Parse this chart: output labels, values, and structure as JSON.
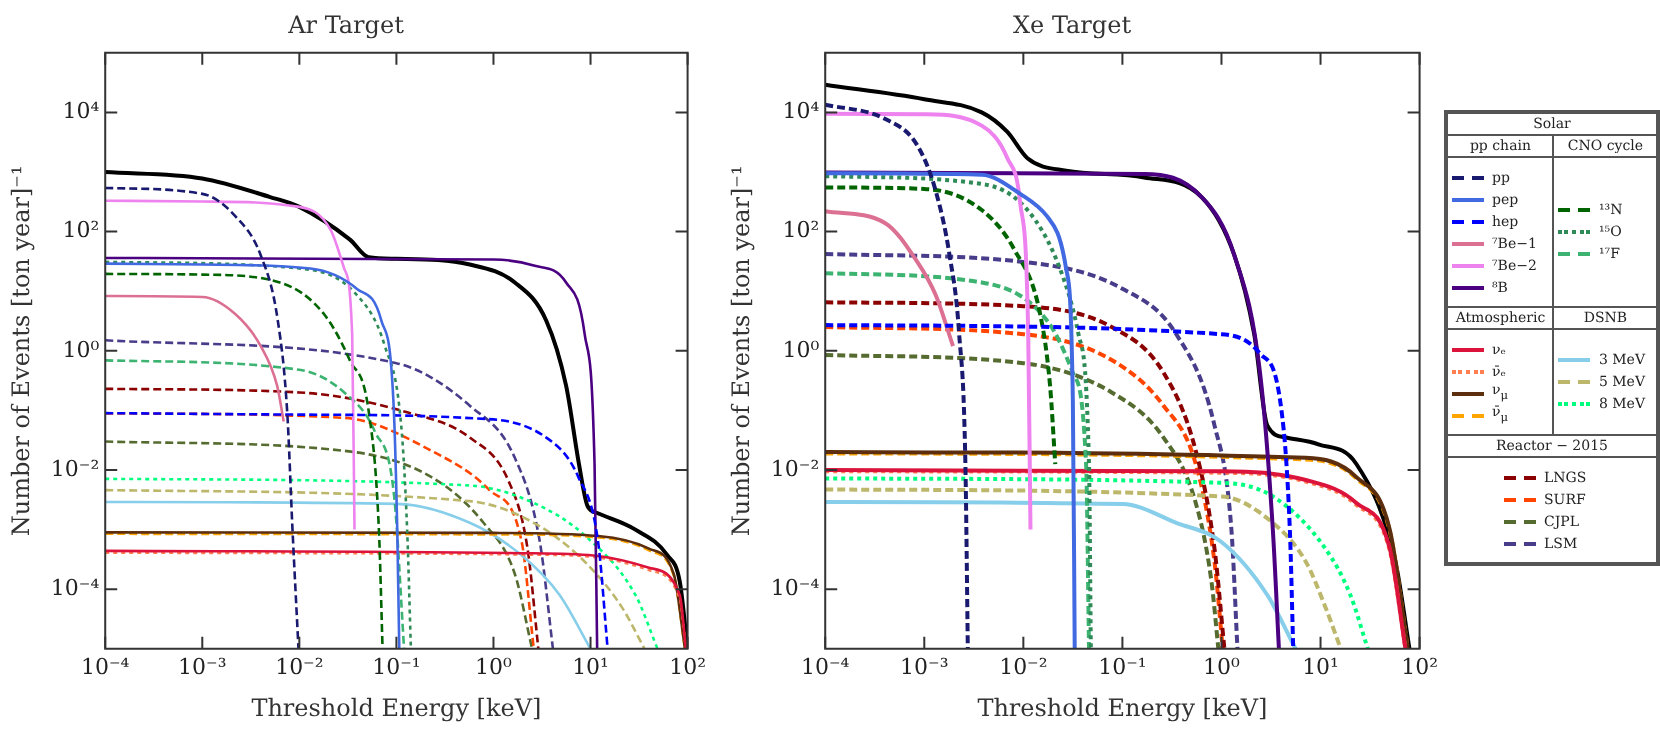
{
  "chart_data": [
    {
      "type": "line",
      "title": "Ar Target",
      "xlabel": "Threshold Energy [keV]",
      "ylabel": "Number of Events [ton year]⁻¹",
      "log": "xy",
      "legend": "right",
      "grid": false,
      "annotations": [
        "Solar",
        "pp chain",
        "CNO cycle",
        "Atmospheric",
        "DSNB",
        "Reactor − 2015"
      ],
      "xlim": [
        0.0001,
        100
      ],
      "ylim": [
        1e-05,
        100000
      ],
      "xticks": [
        {
          "value": 0.0001,
          "label": "10⁻⁴"
        },
        {
          "value": 0.001,
          "label": "10⁻³"
        },
        {
          "value": 0.01,
          "label": "10⁻²"
        },
        {
          "value": 0.1,
          "label": "10⁻¹"
        },
        {
          "value": 1,
          "label": "10⁰"
        },
        {
          "value": 10,
          "label": "10¹"
        },
        {
          "value": 100,
          "label": "10²"
        }
      ],
      "yticks": [
        {
          "value": 0.0001,
          "label": "10⁻⁴"
        },
        {
          "value": 0.01,
          "label": "10⁻²"
        },
        {
          "value": 1,
          "label": "10⁰"
        },
        {
          "value": 100,
          "label": "10²"
        },
        {
          "value": 10000,
          "label": "10⁴"
        }
      ],
      "series": [
        {
          "name": "pp",
          "color": "#191970",
          "line_style": "dashed",
          "x": [
            0.0001,
            0.001,
            0.0022,
            0.004,
            0.006,
            0.0075,
            0.0085,
            0.0098
          ],
          "values": [
            540,
            430,
            180,
            40,
            3.2,
            0.093,
            0.001,
            1e-05
          ]
        },
        {
          "name": "pep",
          "color": "#4169e1",
          "line_style": "solid",
          "x": [
            0.0001,
            0.001,
            0.013,
            0.039,
            0.07,
            0.093,
            0.102,
            0.107
          ],
          "values": [
            29,
            28,
            24,
            11,
            3.2,
            0.15,
            0.001,
            1e-05
          ]
        },
        {
          "name": "hep",
          "color": "#0000ff",
          "line_style": "dashed",
          "x": [
            0.0001,
            0.01,
            0.5,
            3.5,
            7.5,
            12,
            15
          ],
          "values": [
            0.09,
            0.085,
            0.075,
            0.035,
            0.0076,
            0.0006,
            1e-05
          ]
        },
        {
          "name": "⁷Be−1",
          "color": "#db7093",
          "line_style": "solid",
          "x": [
            0.0001,
            0.001,
            0.0022,
            0.004,
            0.0059,
            0.0069
          ],
          "values": [
            8.3,
            8,
            4.1,
            1.2,
            0.26,
            0.065
          ]
        },
        {
          "name": "⁷Be−2",
          "color": "#ee82ee",
          "line_style": "solid",
          "x": [
            0.0001,
            0.001,
            0.01,
            0.021,
            0.029,
            0.035,
            0.037
          ],
          "values": [
            330,
            320,
            260,
            107,
            24,
            1.9,
            0.001
          ]
        },
        {
          "name": "⁸B",
          "color": "#4b0082",
          "line_style": "solid",
          "x": [
            0.0001,
            1,
            2.6,
            5.6,
            8.7,
            11,
            11.7
          ],
          "values": [
            36,
            34,
            27,
            14,
            1.9,
            0.0126,
            1e-05
          ]
        },
        {
          "name": "¹³N",
          "color": "#006400",
          "line_style": "dashed",
          "x": [
            0.0001,
            0.001,
            0.0063,
            0.018,
            0.033,
            0.052,
            0.066,
            0.072
          ],
          "values": [
            19.5,
            19,
            14,
            4.1,
            0.7,
            0.093,
            0.001,
            1e-05
          ]
        },
        {
          "name": "¹⁵O",
          "color": "#2e8b57",
          "line_style": "dotted",
          "x": [
            0.0001,
            0.01,
            0.039,
            0.076,
            0.112,
            0.129,
            0.141
          ],
          "values": [
            31,
            24,
            8.7,
            1.2,
            0.056,
            0.001,
            1e-05
          ]
        },
        {
          "name": "¹⁷F",
          "color": "#3cb371",
          "line_style": "dashed",
          "x": [
            0.0001,
            0.01,
            0.029,
            0.06,
            0.095,
            0.12
          ],
          "values": [
            0.69,
            0.48,
            0.2,
            0.044,
            0.0035,
            1e-05
          ]
        },
        {
          "name": "νₑ",
          "color": "#dc143c",
          "line_style": "solid",
          "x": [
            0.0001,
            2.6,
            12,
            40,
            83,
            96
          ],
          "values": [
            0.00044,
            0.0004,
            0.00036,
            0.00023,
            8e-05,
            1e-05
          ]
        },
        {
          "name": "ν̄ₑ",
          "color": "#ff7f50",
          "line_style": "dotted",
          "x": [
            0.0001,
            2.6,
            12,
            40,
            83,
            96
          ],
          "values": [
            0.00041,
            0.00038,
            0.00034,
            0.00021,
            7e-05,
            1e-05
          ]
        },
        {
          "name": "ν$_{μ}$",
          "color": "#5c2e0e",
          "line_style": "solid",
          "x": [
            0.0001,
            1,
            12,
            40,
            72,
            94
          ],
          "values": [
            0.0009,
            0.00088,
            0.00078,
            0.00048,
            0.00018,
            1e-05
          ]
        },
        {
          "name": "ν̄$_{μ}$",
          "color": "#ffa500",
          "line_style": "dashed",
          "x": [
            0.0001,
            1,
            12,
            40,
            72,
            94
          ],
          "values": [
            0.00085,
            0.00083,
            0.00074,
            0.00045,
            0.00017,
            1e-05
          ]
        },
        {
          "name": "3 MeV",
          "color": "#87ceeb",
          "line_style": "solid",
          "x": [
            0.0001,
            0.1,
            0.57,
            1.95,
            4.8,
            10
          ],
          "values": [
            0.0029,
            0.0027,
            0.0013,
            0.00037,
            8e-05,
            1e-05
          ]
        },
        {
          "name": "5 MeV",
          "color": "#bdb76b",
          "line_style": "dashed",
          "x": [
            0.0001,
            0.57,
            2.6,
            8.7,
            21,
            36
          ],
          "values": [
            0.0046,
            0.003,
            0.0013,
            0.00029,
            5e-05,
            1e-05
          ]
        },
        {
          "name": "8 MeV",
          "color": "#00ff7f",
          "line_style": "dotted",
          "x": [
            0.0001,
            0.57,
            2.6,
            8.7,
            29,
            49
          ],
          "values": [
            0.0071,
            0.0055,
            0.0028,
            0.0008,
            8e-05,
            1e-05
          ]
        },
        {
          "name": "LNGS",
          "color": "#8b0000",
          "line_style": "dashed",
          "x": [
            0.0001,
            0.01,
            0.129,
            0.57,
            1.45,
            2.24,
            2.9
          ],
          "values": [
            0.23,
            0.2,
            0.093,
            0.035,
            0.0062,
            0.00049,
            1e-05
          ]
        },
        {
          "name": "SURF",
          "color": "#ff4500",
          "line_style": "dashed",
          "x": [
            0.0001,
            0.029,
            0.23,
            0.91,
            1.95,
            2.6
          ],
          "values": [
            0.089,
            0.075,
            0.021,
            0.0046,
            0.00063,
            1e-05
          ]
        },
        {
          "name": "CJPL",
          "color": "#556b2f",
          "line_style": "dashed",
          "x": [
            0.0001,
            0.029,
            0.23,
            0.79,
            1.66,
            2.5
          ],
          "values": [
            0.03,
            0.021,
            0.0076,
            0.0013,
            0.00018,
            1e-05
          ]
        },
        {
          "name": "LSM",
          "color": "#483d8b",
          "line_style": "dashed",
          "x": [
            0.0001,
            0.1,
            0.57,
            1.66,
            3,
            4.1
          ],
          "values": [
            1.5,
            0.62,
            0.12,
            0.016,
            0.00063,
            1e-05
          ]
        },
        {
          "color": "#000000",
          "line_style": "solid",
          "x": [
            0.0001,
            0.001,
            0.005,
            0.01,
            0.033,
            0.052,
            0.1,
            0.57,
            1.66,
            3.5,
            5.6,
            7.6,
            9.3,
            11.7,
            29,
            62,
            83,
            100
          ],
          "values": [
            1000,
            780,
            380,
            260,
            74,
            37,
            35,
            28,
            14,
            3.2,
            0.26,
            0.0126,
            0.0025,
            0.0019,
            0.001,
            0.00037,
            0.000135,
            1e-05
          ]
        }
      ]
    },
    {
      "type": "line",
      "title": "Xe Target",
      "xlabel": "Threshold Energy [keV]",
      "ylabel": "Number of Events [ton year]⁻¹",
      "log": "xy",
      "grid": false,
      "xlim": [
        0.0001,
        100
      ],
      "ylim": [
        1e-05,
        100000
      ],
      "xticks": [
        {
          "value": 0.0001,
          "label": "10⁻⁴"
        },
        {
          "value": 0.001,
          "label": "10⁻³"
        },
        {
          "value": 0.01,
          "label": "10⁻²"
        },
        {
          "value": 0.1,
          "label": "10⁻¹"
        },
        {
          "value": 1,
          "label": "10⁰"
        },
        {
          "value": 10,
          "label": "10¹"
        },
        {
          "value": 100,
          "label": "10²"
        }
      ],
      "yticks": [
        {
          "value": 0.0001,
          "label": "10⁻⁴"
        },
        {
          "value": 0.01,
          "label": "10⁻²"
        },
        {
          "value": 1,
          "label": "10⁰"
        },
        {
          "value": 100,
          "label": "10²"
        },
        {
          "value": 10000,
          "label": "10⁴"
        }
      ],
      "series": [
        {
          "color": "#191970",
          "line_style": "dashed",
          "x": [
            0.0001,
            0.0004,
            0.00085,
            0.0013,
            0.0018,
            0.00225,
            0.0026,
            0.00275
          ],
          "values": [
            13500,
            7800,
            2800,
            490,
            40,
            1.9,
            0.0126,
            1e-05
          ]
        },
        {
          "color": "#4169e1",
          "line_style": "solid",
          "x": [
            0.0001,
            0.0038,
            0.0093,
            0.0174,
            0.027,
            0.0316,
            0.033
          ],
          "values": [
            950,
            900,
            430,
            180,
            24,
            0.15,
            1e-05
          ]
        },
        {
          "color": "#0000ff",
          "line_style": "dashed",
          "x": [
            0.0001,
            1,
            2.45,
            3.9,
            4.9,
            5.3
          ],
          "values": [
            2.7,
            1.9,
            0.9,
            0.15,
            0.001,
            1e-05
          ]
        },
        {
          "color": "#db7093",
          "line_style": "solid",
          "x": [
            0.0001,
            0.0004,
            0.00085,
            0.0013,
            0.00195
          ],
          "values": [
            220,
            140,
            31,
            8.7,
            1.2
          ]
        },
        {
          "color": "#ee82ee",
          "line_style": "solid",
          "x": [
            0.0001,
            0.001,
            0.0038,
            0.0069,
            0.0093,
            0.0112,
            0.0118
          ],
          "values": [
            9500,
            9300,
            6000,
            1700,
            300,
            1.9,
            0.001
          ]
        },
        {
          "color": "#4b0082",
          "line_style": "solid",
          "x": [
            0.0001,
            0.166,
            0.63,
            1.35,
            2.45,
            3.3,
            3.8
          ],
          "values": [
            980,
            930,
            380,
            40,
            0.43,
            0.001,
            1e-05
          ]
        },
        {
          "color": "#006400",
          "line_style": "dashed",
          "x": [
            0.0001,
            0.001,
            0.0038,
            0.0081,
            0.0148,
            0.0186,
            0.021
          ],
          "values": [
            550,
            520,
            230,
            50,
            4.1,
            0.26,
            0.0126
          ]
        },
        {
          "color": "#2e8b57",
          "line_style": "dotted",
          "x": [
            0.0001,
            0.0038,
            0.011,
            0.0234,
            0.036,
            0.046,
            0.048
          ],
          "values": [
            850,
            630,
            230,
            24,
            1.9,
            0.0126,
            1e-05
          ]
        },
        {
          "color": "#3cb371",
          "line_style": "dashed",
          "x": [
            0.0001,
            0.0038,
            0.0174,
            0.0316,
            0.043,
            0.046
          ],
          "values": [
            20,
            14,
            3.2,
            0.43,
            0.0126,
            1e-05
          ]
        },
        {
          "color": "#dc143c",
          "line_style": "solid",
          "x": [
            0.0001,
            1,
            7.1,
            23,
            50,
            72
          ],
          "values": [
            0.01,
            0.0095,
            0.0068,
            0.0028,
            0.00048,
            1e-05
          ]
        },
        {
          "color": "#ff7f50",
          "line_style": "dotted",
          "x": [
            0.0001,
            1,
            7.1,
            23,
            50,
            72
          ],
          "values": [
            0.0095,
            0.009,
            0.0064,
            0.0026,
            0.00044,
            1e-05
          ]
        },
        {
          "color": "#5c2e0e",
          "line_style": "solid",
          "x": [
            0.0001,
            7.1,
            23,
            50,
            76
          ],
          "values": [
            0.02,
            0.016,
            0.0076,
            0.001,
            1e-05
          ]
        },
        {
          "color": "#ffa500",
          "line_style": "dashed",
          "x": [
            0.0001,
            7.1,
            23,
            50,
            76
          ],
          "values": [
            0.019,
            0.015,
            0.0072,
            0.00095,
            1e-05
          ]
        },
        {
          "color": "#87ceeb",
          "line_style": "solid",
          "x": [
            0.0001,
            0.1,
            0.35,
            1,
            2.9,
            5.6
          ],
          "values": [
            0.0029,
            0.0027,
            0.0013,
            0.00062,
            8e-05,
            1e-05
          ]
        },
        {
          "color": "#bdb76b",
          "line_style": "dashed",
          "x": [
            0.0001,
            1,
            3.3,
            7.1,
            11.2,
            16
          ],
          "values": [
            0.0047,
            0.0036,
            0.0013,
            0.00029,
            5e-05,
            1e-05
          ]
        },
        {
          "color": "#00ff7f",
          "line_style": "dotted",
          "x": [
            0.0001,
            1,
            3.3,
            11.2,
            20,
            30
          ],
          "values": [
            0.0072,
            0.0061,
            0.0036,
            0.00048,
            8e-05,
            1e-05
          ]
        },
        {
          "color": "#8b0000",
          "line_style": "dashed",
          "x": [
            0.0001,
            0.01,
            0.078,
            0.26,
            0.55,
            0.85,
            1.07
          ],
          "values": [
            6.5,
            5.6,
            2.5,
            0.43,
            0.021,
            0.00048,
            1e-05
          ]
        },
        {
          "color": "#ff4500",
          "line_style": "dashed",
          "x": [
            0.0001,
            0.01,
            0.078,
            0.26,
            0.55,
            0.85,
            1.03
          ],
          "values": [
            2.5,
            1.9,
            0.7,
            0.12,
            0.0126,
            0.00029,
            1e-05
          ]
        },
        {
          "color": "#556b2f",
          "line_style": "dashed",
          "x": [
            0.0001,
            0.01,
            0.078,
            0.26,
            0.55,
            0.79,
            0.93
          ],
          "values": [
            0.85,
            0.62,
            0.2,
            0.035,
            0.0028,
            0.00014,
            1e-05
          ]
        },
        {
          "color": "#483d8b",
          "line_style": "dashed",
          "x": [
            0.0001,
            0.01,
            0.1,
            0.35,
            0.85,
            1.26,
            1.45
          ],
          "values": [
            42,
            31,
            11,
            1.9,
            0.056,
            0.001,
            1e-05
          ]
        },
        {
          "color": "#000000",
          "line_style": "solid",
          "x": [
            0.0001,
            0.001,
            0.0038,
            0.0069,
            0.011,
            0.027,
            0.166,
            0.63,
            1.35,
            2.14,
            2.9,
            4.5,
            9.5,
            23,
            57,
            79
          ],
          "values": [
            29000,
            16600,
            10000,
            4700,
            1700,
            1050,
            810,
            380,
            40,
            1.9,
            0.056,
            0.035,
            0.027,
            0.0126,
            0.00029,
            1e-05
          ]
        }
      ]
    }
  ]
}
